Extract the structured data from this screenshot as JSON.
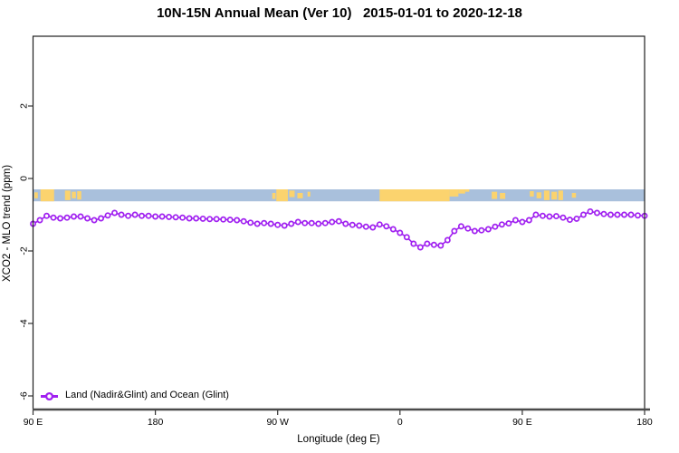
{
  "chart_data": {
    "type": "line",
    "title": "10N-15N Annual Mean (Ver 10)   2015-01-01 to 2020-12-18",
    "xlabel": "Longitude (deg E)",
    "ylabel": "XCO2 - MLO trend (ppm)",
    "xlim": [
      90,
      540
    ],
    "ylim": [
      -6.4,
      3.9
    ],
    "grid": false,
    "x_ticks": [
      {
        "value": 90,
        "label": "90 E"
      },
      {
        "value": 180,
        "label": "180"
      },
      {
        "value": 270,
        "label": "90 W"
      },
      {
        "value": 360,
        "label": "0"
      },
      {
        "value": 450,
        "label": "90 E"
      },
      {
        "value": 540,
        "label": "180"
      }
    ],
    "y_ticks": [
      {
        "value": 2,
        "label": "2"
      },
      {
        "value": 0,
        "label": "0"
      },
      {
        "value": -2,
        "label": "-2"
      },
      {
        "value": -4,
        "label": "-4"
      },
      {
        "value": -6,
        "label": "-6"
      }
    ],
    "legend": {
      "position": "bottom-left",
      "entries": [
        {
          "label": "Land (Nadir&Glint) and Ocean (Glint)",
          "color": "#A020F0",
          "marker": "open-circle"
        }
      ]
    },
    "map_band": {
      "description": "land-ocean strip along 10N-15N",
      "y_range": [
        -0.63,
        -0.3
      ],
      "ocean_color": "#a9c0dc",
      "land_color": "#fbd36e",
      "land_segments": [
        {
          "from": 91,
          "to": 93.5,
          "h": 0.5,
          "v": 0.25
        },
        {
          "from": 95.5,
          "to": 105.5,
          "h": 1,
          "v": 0
        },
        {
          "from": 113.5,
          "to": 117.5,
          "h": 0.8,
          "v": 0.1
        },
        {
          "from": 118.5,
          "to": 121.5,
          "h": 0.55,
          "v": 0.2
        },
        {
          "from": 122.5,
          "to": 125.5,
          "h": 0.7,
          "v": 0.15
        },
        {
          "from": 266,
          "to": 268.5,
          "h": 0.5,
          "v": 0.3
        },
        {
          "from": 269,
          "to": 277.5,
          "h": 1,
          "v": 0
        },
        {
          "from": 278.5,
          "to": 282.5,
          "h": 0.55,
          "v": 0.1
        },
        {
          "from": 284.5,
          "to": 288.5,
          "h": 0.45,
          "v": 0.3
        },
        {
          "from": 292,
          "to": 294,
          "h": 0.4,
          "v": 0.2
        },
        {
          "from": 345,
          "to": 396.5,
          "h": 1,
          "v": 0
        },
        {
          "from": 396.5,
          "to": 403,
          "h": 0.6,
          "v": 0
        },
        {
          "from": 403,
          "to": 408,
          "h": 0.35,
          "v": 0
        },
        {
          "from": 408,
          "to": 411,
          "h": 0.2,
          "v": 0
        },
        {
          "from": 427.5,
          "to": 431.5,
          "h": 0.6,
          "v": 0.2
        },
        {
          "from": 433.5,
          "to": 437.5,
          "h": 0.5,
          "v": 0.3
        },
        {
          "from": 455.5,
          "to": 458.5,
          "h": 0.45,
          "v": 0.15
        },
        {
          "from": 460.5,
          "to": 464,
          "h": 0.5,
          "v": 0.25
        },
        {
          "from": 466,
          "to": 470,
          "h": 0.8,
          "v": 0.1
        },
        {
          "from": 471.5,
          "to": 475.5,
          "h": 0.65,
          "v": 0.2
        },
        {
          "from": 476.5,
          "to": 480,
          "h": 0.8,
          "v": 0.1
        },
        {
          "from": 486.5,
          "to": 489.5,
          "h": 0.4,
          "v": 0.3
        }
      ]
    },
    "series": [
      {
        "name": "Land (Nadir&Glint) and Ocean (Glint)",
        "color": "#A020F0",
        "x": [
          90,
          95,
          100,
          105,
          110,
          115,
          120,
          125,
          130,
          135,
          140,
          145,
          150,
          155,
          160,
          165,
          170,
          175,
          180,
          185,
          190,
          195,
          200,
          205,
          210,
          215,
          220,
          225,
          230,
          235,
          240,
          245,
          250,
          255,
          260,
          265,
          270,
          275,
          280,
          285,
          290,
          295,
          300,
          305,
          310,
          315,
          320,
          325,
          330,
          335,
          340,
          345,
          350,
          355,
          360,
          365,
          370,
          375,
          380,
          385,
          390,
          395,
          400,
          405,
          410,
          415,
          420,
          425,
          430,
          435,
          440,
          445,
          450,
          455,
          460,
          465,
          470,
          475,
          480,
          485,
          490,
          495,
          500,
          505,
          510,
          515,
          520,
          525,
          530,
          535,
          540
        ],
        "values": [
          -1.25,
          -1.15,
          -1.03,
          -1.08,
          -1.1,
          -1.08,
          -1.05,
          -1.05,
          -1.1,
          -1.15,
          -1.1,
          -1.02,
          -0.95,
          -1.0,
          -1.03,
          -1.0,
          -1.03,
          -1.03,
          -1.05,
          -1.05,
          -1.06,
          -1.07,
          -1.08,
          -1.1,
          -1.1,
          -1.11,
          -1.12,
          -1.12,
          -1.13,
          -1.14,
          -1.15,
          -1.18,
          -1.22,
          -1.25,
          -1.23,
          -1.25,
          -1.28,
          -1.3,
          -1.25,
          -1.2,
          -1.23,
          -1.23,
          -1.25,
          -1.23,
          -1.2,
          -1.18,
          -1.25,
          -1.28,
          -1.3,
          -1.33,
          -1.35,
          -1.27,
          -1.32,
          -1.4,
          -1.5,
          -1.62,
          -1.8,
          -1.9,
          -1.8,
          -1.83,
          -1.85,
          -1.7,
          -1.45,
          -1.32,
          -1.38,
          -1.45,
          -1.43,
          -1.4,
          -1.33,
          -1.27,
          -1.24,
          -1.15,
          -1.2,
          -1.15,
          -1.0,
          -1.03,
          -1.05,
          -1.04,
          -1.08,
          -1.14,
          -1.11,
          -1.0,
          -0.91,
          -0.95,
          -0.98,
          -1.0,
          -1.0,
          -1.0,
          -1.0,
          -1.02,
          -1.03
        ]
      }
    ],
    "frame_color": "#1f1f1f",
    "axis_line_color": "#4a4a4a"
  }
}
